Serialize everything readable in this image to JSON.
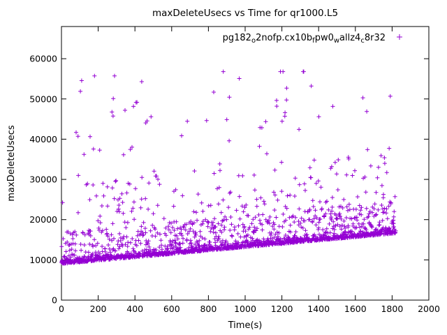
{
  "chart_data": {
    "type": "scatter",
    "title": "maxDeleteUsecs vs Time for qr1000.L5",
    "xlabel": "Time(s)",
    "ylabel": "maxDeleteUsecs",
    "xlim": [
      0,
      2000
    ],
    "ylim": [
      0,
      68000
    ],
    "xticks": [
      0,
      200,
      400,
      600,
      800,
      1000,
      1200,
      1400,
      1600,
      1800,
      2000
    ],
    "yticks": [
      0,
      10000,
      20000,
      30000,
      40000,
      50000,
      60000
    ],
    "grid": false,
    "legend_position": "top-right-inside",
    "series": [
      {
        "name": "pg182_o2nofp.cx10b_fpw0_wallz4_c8r32",
        "name_segments": [
          {
            "t": "pg182",
            "sub": false
          },
          {
            "t": "o",
            "sub": true
          },
          {
            "t": "2nofp.cx10b",
            "sub": false
          },
          {
            "t": "f",
            "sub": true
          },
          {
            "t": "pw0",
            "sub": false
          },
          {
            "t": "w",
            "sub": true
          },
          {
            "t": "allz4",
            "sub": false
          },
          {
            "t": "c",
            "sub": true
          },
          {
            "t": "8r32",
            "sub": false
          }
        ],
        "marker": "plus",
        "color": "#9400d3",
        "points_generator": {
          "seed": 1337,
          "n": 1820,
          "x_start": 0,
          "x_end": 1820,
          "baseline_start_usecs": 9000,
          "baseline_end_usecs": 16500,
          "baseline_end_x": 1800,
          "y_cap_usecs": 56800,
          "description": "Dense band of max-delete latencies rising roughly linearly from ~9000 usecs at t=0 to ~16500 usecs at t=1800, with frequent mid outliers between ~17000 and ~35000 usecs and sparse spikes up to ~56500 usecs."
        }
      }
    ]
  }
}
